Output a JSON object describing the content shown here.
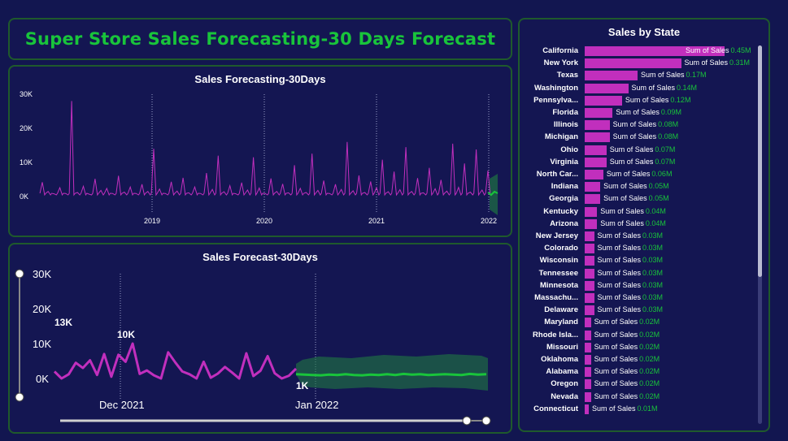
{
  "dashboard": {
    "title": "Super Store Sales Forecasting-30 Days Forecast"
  },
  "history_chart": {
    "title": "Sales Forecasting-30Days",
    "y_ticks": [
      "30K",
      "20K",
      "10K",
      "0K"
    ],
    "x_ticks": [
      "2019",
      "2020",
      "2021",
      "2022"
    ]
  },
  "forecast_chart": {
    "title": "Sales Forecast-30Days",
    "y_ticks": [
      "30K",
      "20K",
      "10K",
      "0K"
    ],
    "x_ticks": [
      "Dec 2021",
      "Jan 2022"
    ],
    "labels": {
      "max_left": "13K",
      "peak": "10K",
      "forecast_start": "1K"
    }
  },
  "state_chart": {
    "title": "Sales by State",
    "measure_label": "Sum of Sales"
  },
  "colors": {
    "accent_green": "#19c43b",
    "actual_magenta": "#c12fbd",
    "background": "#121650",
    "border": "#1f5a2c"
  },
  "chart_data": [
    {
      "type": "line",
      "title": "Sales Forecasting-30Days",
      "xlabel": "",
      "ylabel": "",
      "x_ticks": [
        "2019",
        "2020",
        "2021",
        "2022"
      ],
      "ylim": [
        0,
        30000
      ],
      "series": [
        {
          "values": [
            4200,
            1500,
            800,
            2600,
            900,
            28000,
            1200,
            3000,
            700,
            5200,
            1800,
            2400,
            900,
            6100,
            1300,
            2800,
            900,
            3600,
            1500,
            14000,
            2200,
            900,
            4300,
            1600,
            5500,
            1100,
            2800,
            900,
            6900,
            2100,
            12000,
            1400,
            3200,
            800,
            4100,
            1900,
            11500,
            2500,
            900,
            5300,
            1500,
            3700,
            1100,
            9200,
            2400,
            1200,
            12600,
            1800,
            4700,
            900,
            3600,
            2100,
            16000,
            1700,
            6200,
            1200,
            4400,
            2600,
            10800,
            1400,
            7300,
            2000,
            14500,
            1500,
            5400,
            1100,
            8400,
            2300,
            4900,
            1600,
            15500,
            2700,
            9700,
            1300,
            13800,
            1900,
            7600
          ]
        }
      ]
    },
    {
      "type": "line",
      "title": "Sales Forecast-30Days",
      "x_ticks": [
        "Dec 2021",
        "Jan 2022"
      ],
      "ylim": [
        0,
        30000
      ],
      "series": [
        {
          "name": "",
          "values": [
            2000,
            0,
            1200,
            4500,
            3000,
            5200,
            1000,
            7000,
            500,
            6800,
            4800,
            10000,
            1300,
            2300,
            900,
            0,
            7500,
            4600,
            2000,
            1200,
            0,
            4800,
            200,
            1400,
            3300,
            1700,
            0,
            7200,
            700,
            2200,
            6400,
            1500,
            0,
            800,
            2800
          ]
        },
        {
          "name": "",
          "values": [
            1200,
            1100,
            1000,
            900,
            1100,
            1000,
            1200,
            1000,
            900,
            1100,
            1000,
            1200,
            1000,
            1300,
            1100,
            1200,
            1000,
            1100,
            1200,
            1100,
            1000,
            1300,
            1100,
            1200
          ]
        }
      ]
    },
    {
      "type": "bar",
      "title": "Sales by State",
      "categories": [
        "California",
        "New York",
        "Texas",
        "Washington",
        "Pennsylva...",
        "Florida",
        "Illinois",
        "Michigan",
        "Ohio",
        "Virginia",
        "North Car...",
        "Indiana",
        "Georgia",
        "Kentucky",
        "Arizona",
        "New Jersey",
        "Colorado",
        "Wisconsin",
        "Tennessee",
        "Minnesota",
        "Massachu...",
        "Delaware",
        "Maryland",
        "Rhode Isla...",
        "Missouri",
        "Oklahoma",
        "Alabama",
        "Oregon",
        "Nevada",
        "Connecticut"
      ],
      "values": [
        0.45,
        0.31,
        0.17,
        0.14,
        0.12,
        0.09,
        0.08,
        0.08,
        0.07,
        0.07,
        0.06,
        0.05,
        0.05,
        0.04,
        0.04,
        0.03,
        0.03,
        0.03,
        0.03,
        0.03,
        0.03,
        0.03,
        0.02,
        0.02,
        0.02,
        0.02,
        0.02,
        0.02,
        0.02,
        0.01
      ],
      "value_labels": [
        "0.45M",
        "0.31M",
        "0.17M",
        "0.14M",
        "0.12M",
        "0.09M",
        "0.08M",
        "0.08M",
        "0.07M",
        "0.07M",
        "0.06M",
        "0.05M",
        "0.05M",
        "0.04M",
        "0.04M",
        "0.03M",
        "0.03M",
        "0.03M",
        "0.03M",
        "0.03M",
        "0.03M",
        "0.03M",
        "0.02M",
        "0.02M",
        "0.02M",
        "0.02M",
        "0.02M",
        "0.02M",
        "0.02M",
        "0.01M"
      ]
    }
  ]
}
